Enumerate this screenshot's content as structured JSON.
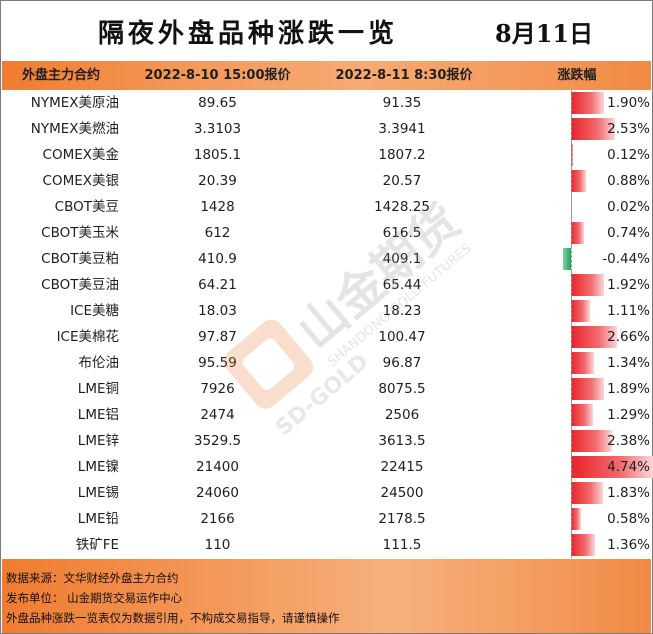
{
  "title": "隔夜外盘品种涨跌一览",
  "date": "8月11日",
  "colors": {
    "header_orange": "#f49a5c",
    "up_red": "#e8242a",
    "down_green": "#22a05a"
  },
  "headers": {
    "name": "外盘主力合约",
    "price1": "2022-8-10 15:00报价",
    "price2": "2022-8-11 8:30报价",
    "change": "涨跌幅"
  },
  "rows": [
    {
      "name": "NYMEX美原油",
      "p1": "89.65",
      "p2": "91.35",
      "chg": "1.90%",
      "pct": 1.9
    },
    {
      "name": "NYMEX美燃油",
      "p1": "3.3103",
      "p2": "3.3941",
      "chg": "2.53%",
      "pct": 2.53
    },
    {
      "name": "COMEX美金",
      "p1": "1805.1",
      "p2": "1807.2",
      "chg": "0.12%",
      "pct": 0.12
    },
    {
      "name": "COMEX美银",
      "p1": "20.39",
      "p2": "20.57",
      "chg": "0.88%",
      "pct": 0.88
    },
    {
      "name": "CBOT美豆",
      "p1": "1428",
      "p2": "1428.25",
      "chg": "0.02%",
      "pct": 0.02
    },
    {
      "name": "CBOT美玉米",
      "p1": "612",
      "p2": "616.5",
      "chg": "0.74%",
      "pct": 0.74
    },
    {
      "name": "CBOT美豆粕",
      "p1": "410.9",
      "p2": "409.1",
      "chg": "-0.44%",
      "pct": -0.44
    },
    {
      "name": "CBOT美豆油",
      "p1": "64.21",
      "p2": "65.44",
      "chg": "1.92%",
      "pct": 1.92
    },
    {
      "name": "ICE美糖",
      "p1": "18.03",
      "p2": "18.23",
      "chg": "1.11%",
      "pct": 1.11
    },
    {
      "name": "ICE美棉花",
      "p1": "97.87",
      "p2": "100.47",
      "chg": "2.66%",
      "pct": 2.66
    },
    {
      "name": "布伦油",
      "p1": "95.59",
      "p2": "96.87",
      "chg": "1.34%",
      "pct": 1.34
    },
    {
      "name": "LME铜",
      "p1": "7926",
      "p2": "8075.5",
      "chg": "1.89%",
      "pct": 1.89
    },
    {
      "name": "LME铝",
      "p1": "2474",
      "p2": "2506",
      "chg": "1.29%",
      "pct": 1.29
    },
    {
      "name": "LME锌",
      "p1": "3529.5",
      "p2": "3613.5",
      "chg": "2.38%",
      "pct": 2.38
    },
    {
      "name": "LME镍",
      "p1": "21400",
      "p2": "22415",
      "chg": "4.74%",
      "pct": 4.74
    },
    {
      "name": "LME锡",
      "p1": "24060",
      "p2": "24500",
      "chg": "1.83%",
      "pct": 1.83
    },
    {
      "name": "LME铅",
      "p1": "2166",
      "p2": "2178.5",
      "chg": "0.58%",
      "pct": 0.58
    },
    {
      "name": "铁矿FE",
      "p1": "110",
      "p2": "111.5",
      "chg": "1.36%",
      "pct": 1.36
    }
  ],
  "footer": {
    "source": "数据来源：文华财经外盘主力合约",
    "publisher": "发布单位：  山金期货交易运作中心",
    "disclaimer": "外盘品种涨跌一览表仅为数据引用，不构成交易指导，请谨慎操作"
  },
  "watermark": {
    "brand": "山金期货",
    "en": "SHANDONG GOLD FUTURES",
    "logo": "SD-GOLD",
    "icon": "sd-gold-logo-icon"
  }
}
